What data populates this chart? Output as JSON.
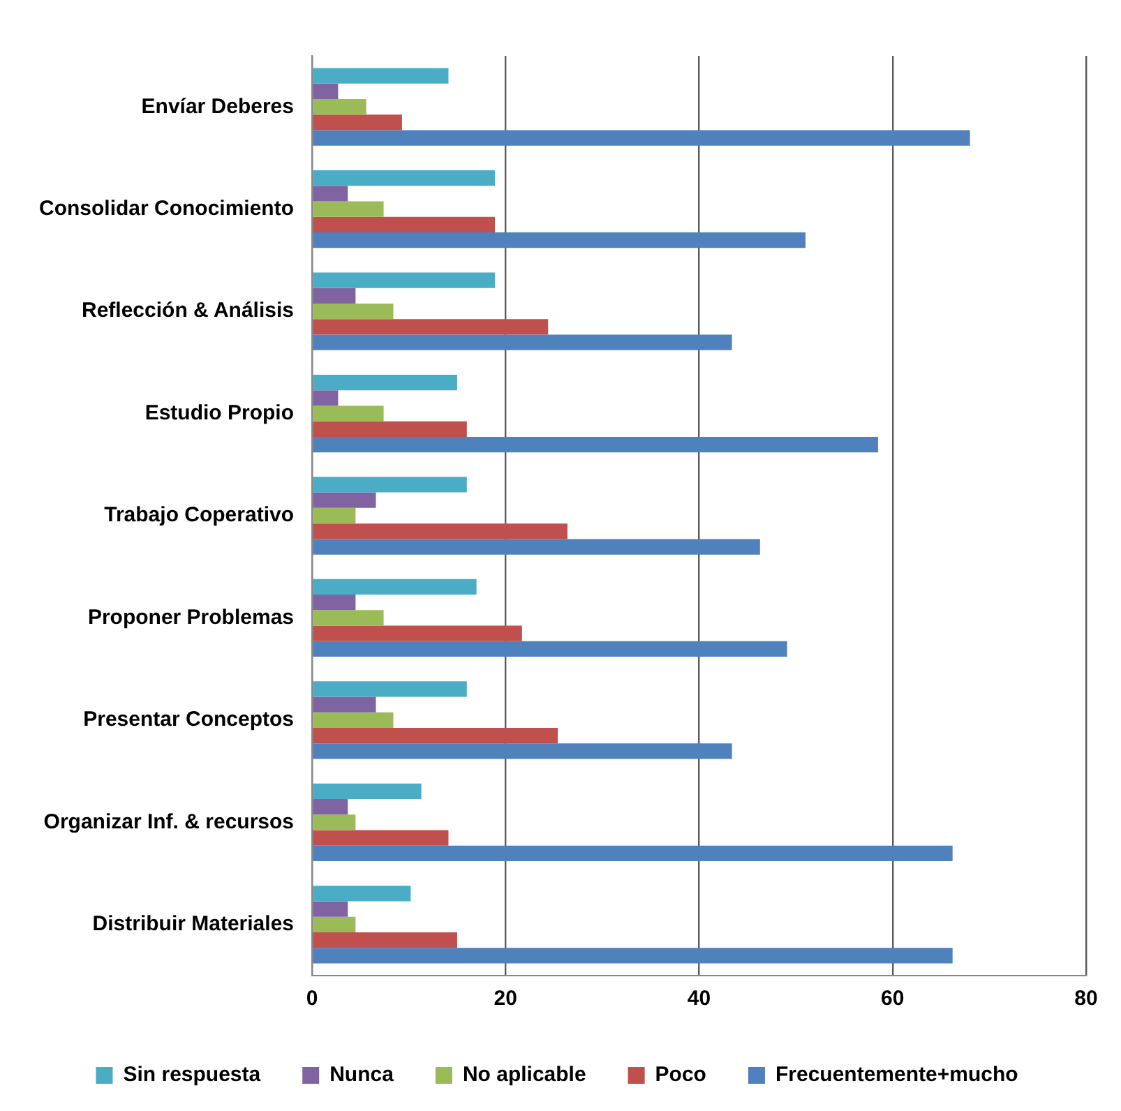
{
  "chart_data": {
    "type": "bar",
    "orientation": "horizontal",
    "categories": [
      "Envíar Deberes",
      "Consolidar Conocimiento",
      "Reflección & Análisis",
      "Estudio Propio",
      "Trabajo Coperativo",
      "Proponer Problemas",
      "Presentar Conceptos",
      "Organizar Inf. & recursos",
      "Distribuir Materiales"
    ],
    "series": [
      {
        "name": "Sin respuesta",
        "color": "#4bacc6",
        "values": [
          14.1,
          18.9,
          18.9,
          15.0,
          16.0,
          17.0,
          16.0,
          11.3,
          10.2
        ]
      },
      {
        "name": "Nunca",
        "color": "#8064a2",
        "values": [
          2.7,
          3.7,
          4.5,
          2.7,
          6.6,
          4.5,
          6.6,
          3.7,
          3.7
        ]
      },
      {
        "name": "No aplicable",
        "color": "#9bbb59",
        "values": [
          5.6,
          7.4,
          8.4,
          7.4,
          4.5,
          7.4,
          8.4,
          4.5,
          4.5
        ]
      },
      {
        "name": "Poco",
        "color": "#c0504d",
        "values": [
          9.3,
          18.9,
          24.4,
          16.0,
          26.4,
          21.7,
          25.4,
          14.1,
          15.0
        ]
      },
      {
        "name": "Frecuentemente+mucho",
        "color": "#4f81bd",
        "values": [
          68.0,
          51.0,
          43.4,
          58.5,
          46.3,
          49.1,
          43.4,
          66.2,
          66.2
        ]
      }
    ],
    "xlim": [
      0,
      80
    ],
    "xticks": [
      0,
      20,
      40,
      60,
      80
    ],
    "grid": "x",
    "legend": "bottom"
  }
}
